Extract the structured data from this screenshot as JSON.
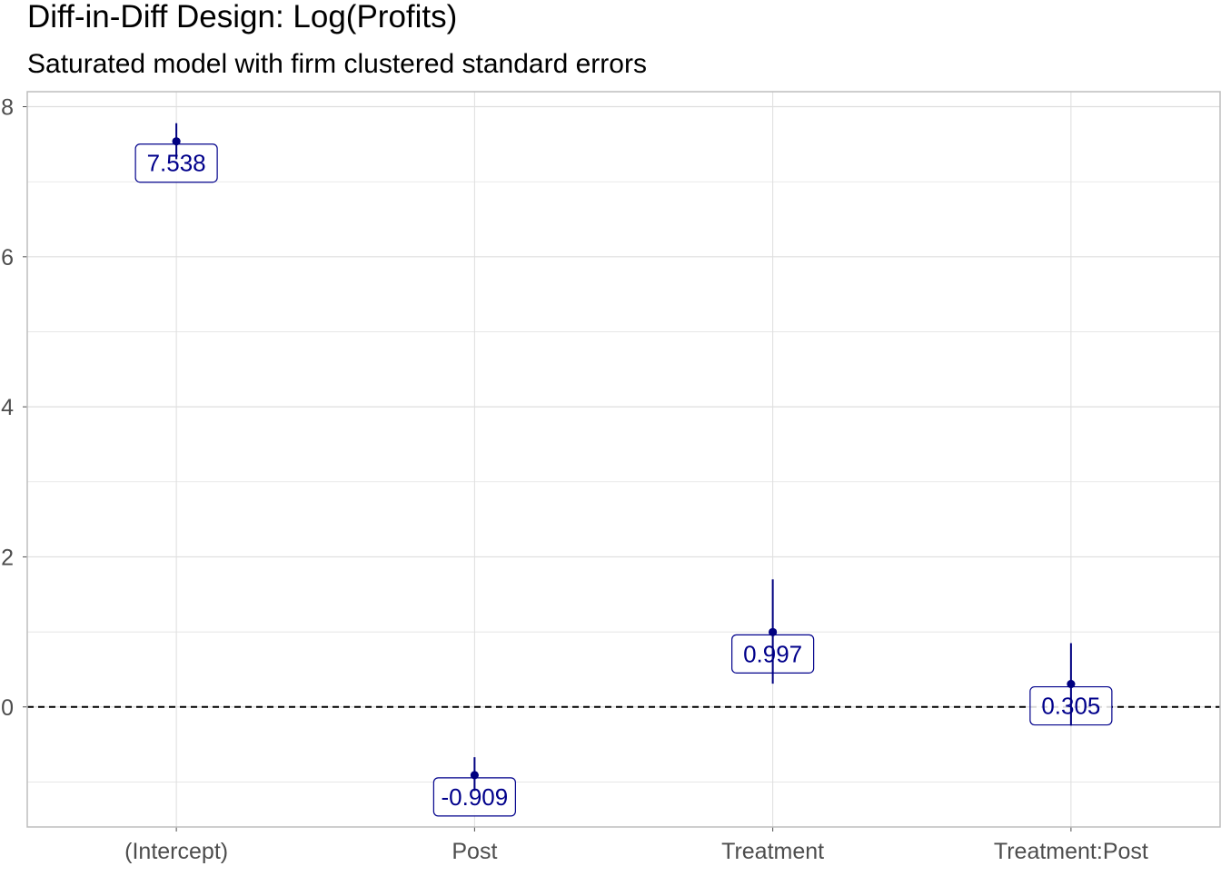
{
  "chart_data": {
    "type": "scatter",
    "title": "Diff-in-Diff Design: Log(Profits)",
    "subtitle": "Saturated model with firm clustered standard errors",
    "xlabel": "",
    "ylabel": "",
    "categories": [
      "(Intercept)",
      "Post",
      "Treatment",
      "Treatment:Post"
    ],
    "estimates": [
      7.538,
      -0.909,
      0.997,
      0.305
    ],
    "labels": [
      "7.538",
      "-0.909",
      "0.997",
      "0.305"
    ],
    "ci_low": [
      7.3,
      -1.12,
      0.31,
      -0.25
    ],
    "ci_high": [
      7.78,
      -0.67,
      1.7,
      0.85
    ],
    "y_ticks": [
      0,
      2,
      4,
      6,
      8
    ],
    "y_tick_labels": [
      "0",
      "2",
      "4",
      "6",
      "8"
    ],
    "ylim": [
      -1.6,
      8.2
    ],
    "reference_line": 0,
    "grid": true,
    "legend": "none",
    "colors": {
      "point": "#000080",
      "label_text": "#00008b",
      "label_border": "#00008b",
      "reference_line": "#000000",
      "grid": "#dedede",
      "panel_border": "#bdbdbd"
    }
  }
}
